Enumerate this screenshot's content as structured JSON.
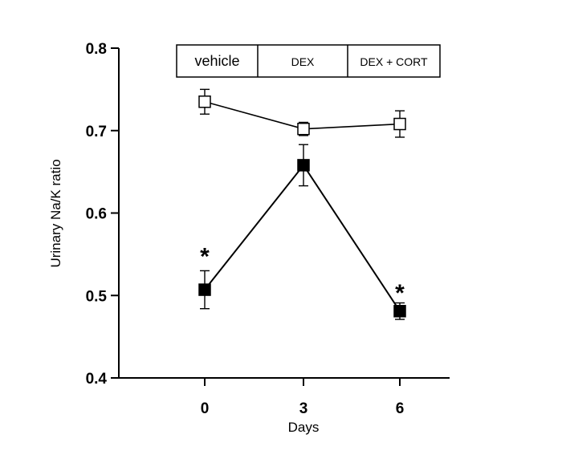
{
  "chart_data": {
    "type": "line",
    "title": "",
    "xlabel": "Days",
    "ylabel": "Urinary Na/K ratio",
    "x": [
      0,
      3,
      6
    ],
    "x_ticks": [
      "0",
      "3",
      "6"
    ],
    "ylim": [
      0.4,
      0.8
    ],
    "y_ticks": [
      "0.4",
      "0.5",
      "0.6",
      "0.7",
      "0.8"
    ],
    "grid": false,
    "series": [
      {
        "marker": "open-square",
        "values": [
          0.735,
          0.702,
          0.708
        ],
        "err": [
          0.015,
          0.008,
          0.016
        ]
      },
      {
        "marker": "filled-square",
        "values": [
          0.507,
          0.658,
          0.481
        ],
        "err": [
          0.023,
          0.025,
          0.01
        ]
      }
    ],
    "phases": [
      "vehicle",
      "DEX",
      "DEX + CORT"
    ],
    "annotations": [
      {
        "text": "*",
        "x": 0,
        "y": 0.557
      },
      {
        "text": "*",
        "x": 6,
        "y": 0.513
      }
    ]
  }
}
